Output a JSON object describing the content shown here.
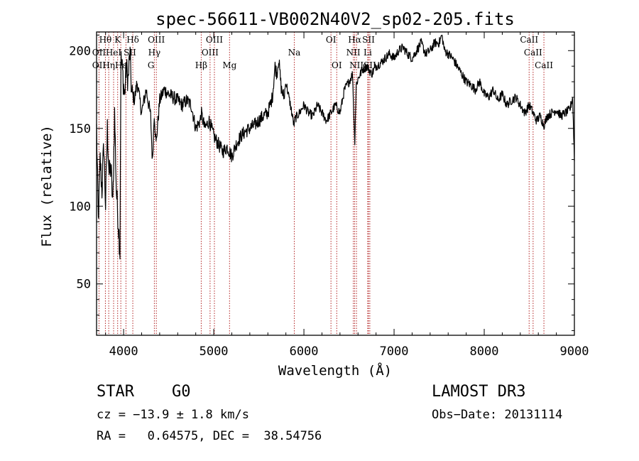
{
  "chart_data": {
    "type": "line",
    "title": "spec-56611-VB002N40V2_sp02-205.fits",
    "xlabel": "Wavelength (Å)",
    "ylabel": "Flux (relative)",
    "xlim": [
      3700,
      9000
    ],
    "ylim": [
      17,
      212
    ],
    "x_ticks": [
      4000,
      5000,
      6000,
      7000,
      8000,
      9000
    ],
    "y_ticks": [
      50,
      100,
      150,
      200
    ],
    "line_color": "#000000",
    "marker_color": "#b22222",
    "series": [
      {
        "name": "flux",
        "x": [
          3700,
          3720,
          3740,
          3760,
          3780,
          3800,
          3820,
          3840,
          3860,
          3880,
          3900,
          3920,
          3940,
          3960,
          3970,
          3990,
          4010,
          4030,
          4050,
          4070,
          4090,
          4100,
          4120,
          4150,
          4200,
          4250,
          4300,
          4320,
          4340,
          4360,
          4400,
          4450,
          4500,
          4550,
          4600,
          4650,
          4700,
          4750,
          4800,
          4850,
          4861,
          4900,
          4950,
          5000,
          5050,
          5100,
          5150,
          5200,
          5250,
          5300,
          5350,
          5400,
          5450,
          5500,
          5550,
          5600,
          5650,
          5680,
          5700,
          5720,
          5750,
          5780,
          5800,
          5850,
          5890,
          5900,
          5950,
          6000,
          6050,
          6100,
          6150,
          6200,
          6250,
          6300,
          6350,
          6400,
          6450,
          6500,
          6540,
          6563,
          6580,
          6600,
          6650,
          6700,
          6750,
          6800,
          6850,
          6900,
          6950,
          7000,
          7050,
          7100,
          7150,
          7200,
          7250,
          7300,
          7350,
          7400,
          7450,
          7500,
          7530,
          7560,
          7600,
          7650,
          7700,
          7750,
          7800,
          7850,
          7900,
          7950,
          8000,
          8050,
          8100,
          8150,
          8200,
          8250,
          8300,
          8350,
          8400,
          8450,
          8500,
          8542,
          8580,
          8620,
          8662,
          8700,
          8750,
          8800,
          8850,
          8900,
          8950,
          8980,
          9000
        ],
        "y": [
          150,
          90,
          130,
          110,
          140,
          100,
          150,
          120,
          125,
          100,
          160,
          110,
          90,
          70,
          195,
          185,
          170,
          190,
          180,
          200,
          170,
          172,
          168,
          180,
          160,
          175,
          158,
          128,
          160,
          140,
          168,
          175,
          172,
          170,
          168,
          165,
          168,
          165,
          150,
          155,
          160,
          150,
          155,
          145,
          140,
          135,
          138,
          132,
          140,
          145,
          148,
          150,
          152,
          155,
          158,
          160,
          170,
          190,
          185,
          195,
          175,
          170,
          180,
          165,
          152,
          156,
          160,
          165,
          160,
          158,
          165,
          160,
          155,
          160,
          165,
          160,
          175,
          180,
          185,
          140,
          178,
          182,
          188,
          190,
          185,
          190,
          192,
          195,
          198,
          195,
          200,
          202,
          198,
          195,
          200,
          205,
          198,
          200,
          205,
          205,
          210,
          200,
          198,
          195,
          190,
          185,
          180,
          178,
          175,
          180,
          172,
          170,
          175,
          168,
          172,
          165,
          168,
          170,
          165,
          160,
          165,
          160,
          155,
          158,
          152,
          158,
          160,
          162,
          158,
          160,
          162,
          170,
          130
        ]
      }
    ],
    "lines": {
      "positions": [
        3727,
        3798,
        3835,
        3889,
        3934,
        3969,
        4026,
        4102,
        4341,
        4363,
        4861,
        4959,
        5007,
        5175,
        5893,
        6300,
        6364,
        6548,
        6563,
        6583,
        6708,
        6716,
        6731,
        8498,
        8542,
        8662
      ],
      "labels": [
        {
          "text": "Hθ",
          "w": 3798,
          "tier": 0
        },
        {
          "text": "K",
          "w": 3934,
          "tier": 0
        },
        {
          "text": "Hδ",
          "w": 4102,
          "tier": 0
        },
        {
          "text": "OIII",
          "w": 4363,
          "tier": 0
        },
        {
          "text": "OIII",
          "w": 5007,
          "tier": 0
        },
        {
          "text": "OI",
          "w": 6300,
          "tier": 0
        },
        {
          "text": "Hα",
          "w": 6563,
          "tier": 0
        },
        {
          "text": "SII",
          "w": 6716,
          "tier": 0
        },
        {
          "text": "CaII",
          "w": 8498,
          "tier": 0
        },
        {
          "text": "OII",
          "w": 3727,
          "tier": 1
        },
        {
          "text": "HeI",
          "w": 3889,
          "tier": 1
        },
        {
          "text": "SII",
          "w": 4070,
          "tier": 1
        },
        {
          "text": "Hγ",
          "w": 4341,
          "tier": 1
        },
        {
          "text": "OIII",
          "w": 4959,
          "tier": 1
        },
        {
          "text": "Na",
          "w": 5893,
          "tier": 1
        },
        {
          "text": "NII",
          "w": 6548,
          "tier": 1
        },
        {
          "text": "Li",
          "w": 6708,
          "tier": 1
        },
        {
          "text": "CaII",
          "w": 8542,
          "tier": 1
        },
        {
          "text": "OII",
          "w": 3727,
          "tier": 2
        },
        {
          "text": "Hη",
          "w": 3835,
          "tier": 2
        },
        {
          "text": "Hε",
          "w": 3969,
          "tier": 2
        },
        {
          "text": "G",
          "w": 4304,
          "tier": 2
        },
        {
          "text": "Hβ",
          "w": 4861,
          "tier": 2
        },
        {
          "text": "Mg",
          "w": 5175,
          "tier": 2
        },
        {
          "text": "OI",
          "w": 6364,
          "tier": 2
        },
        {
          "text": "NII",
          "w": 6583,
          "tier": 2
        },
        {
          "text": "SII",
          "w": 6731,
          "tier": 2
        },
        {
          "text": "CaII",
          "w": 8662,
          "tier": 2
        }
      ]
    }
  },
  "info": {
    "class": "STAR",
    "subclass": "G0",
    "survey": "LAMOST DR3",
    "cz": "cz = −13.9 ± 1.8 km/s",
    "obs_date": "Obs−Date: 20131114",
    "coords": "RA =   0.64575, DEC =  38.54756"
  }
}
